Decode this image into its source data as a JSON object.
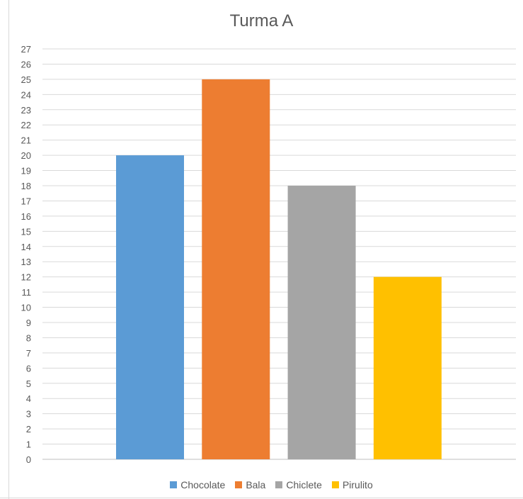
{
  "chart_data": {
    "type": "bar",
    "title": "Turma A",
    "categories": [
      "Chocolate",
      "Bala",
      "Chiclete",
      "Pirulito"
    ],
    "values": [
      20,
      25,
      18,
      12
    ],
    "colors": [
      "#5b9bd5",
      "#ed7d31",
      "#a5a5a5",
      "#ffc000"
    ],
    "ylim": [
      0,
      27
    ],
    "ytick_step": 1,
    "grid": true,
    "legend": "bottom"
  }
}
